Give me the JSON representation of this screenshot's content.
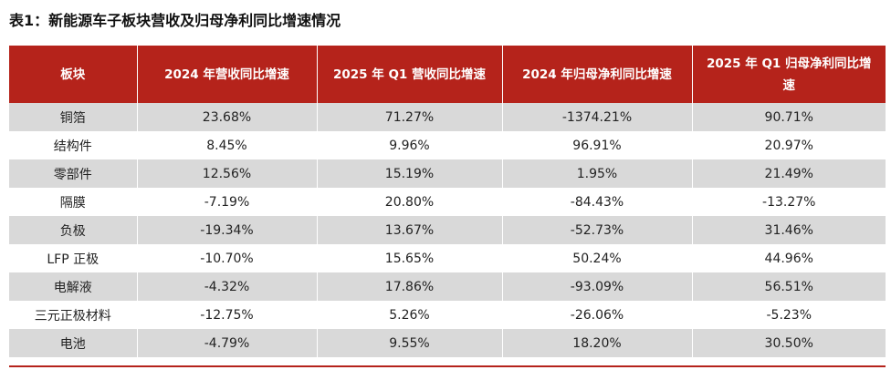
{
  "colors": {
    "header_bg": "#b5231b",
    "stripe": "#d9d9d9"
  },
  "chart_data": {
    "type": "table",
    "title": "表1：新能源车子板块营收及归母净利同比增速情况",
    "columns": [
      "板块",
      "2024 年营收同比增速",
      "2025 年 Q1 营收同比增速",
      "2024 年归母净利同比增速",
      "2025 年 Q1 归母净利同比增速"
    ],
    "rows": [
      [
        "铜箔",
        "23.68%",
        "71.27%",
        "-1374.21%",
        "90.71%"
      ],
      [
        "结构件",
        "8.45%",
        "9.96%",
        "96.91%",
        "20.97%"
      ],
      [
        "零部件",
        "12.56%",
        "15.19%",
        "1.95%",
        "21.49%"
      ],
      [
        "隔膜",
        "-7.19%",
        "20.80%",
        "-84.43%",
        "-13.27%"
      ],
      [
        "负极",
        "-19.34%",
        "13.67%",
        "-52.73%",
        "31.46%"
      ],
      [
        "LFP 正极",
        "-10.70%",
        "15.65%",
        "50.24%",
        "44.96%"
      ],
      [
        "电解液",
        "-4.32%",
        "17.86%",
        "-93.09%",
        "56.51%"
      ],
      [
        "三元正极材料",
        "-12.75%",
        "5.26%",
        "-26.06%",
        "-5.23%"
      ],
      [
        "电池",
        "-4.79%",
        "9.55%",
        "18.20%",
        "30.50%"
      ]
    ]
  }
}
